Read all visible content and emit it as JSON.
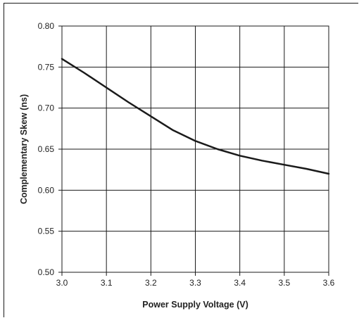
{
  "chart_data": {
    "type": "line",
    "title": "",
    "xlabel": "Power Supply Voltage (V)",
    "ylabel": "Complementary Skew (ns)",
    "xlim": [
      3.0,
      3.6
    ],
    "ylim": [
      0.5,
      0.8
    ],
    "x_ticks": [
      "3.0",
      "3.1",
      "3.2",
      "3.3",
      "3.4",
      "3.5",
      "3.6"
    ],
    "y_ticks": [
      "0.50",
      "0.55",
      "0.60",
      "0.65",
      "0.70",
      "0.75",
      "0.80"
    ],
    "grid": true,
    "line_color": "#1a1a1a",
    "series": [
      {
        "x": [
          3.0,
          3.05,
          3.1,
          3.15,
          3.2,
          3.25,
          3.3,
          3.35,
          3.4,
          3.45,
          3.5,
          3.55,
          3.6
        ],
        "values": [
          0.76,
          0.743,
          0.725,
          0.707,
          0.69,
          0.673,
          0.66,
          0.65,
          0.642,
          0.636,
          0.631,
          0.626,
          0.62
        ]
      }
    ]
  }
}
